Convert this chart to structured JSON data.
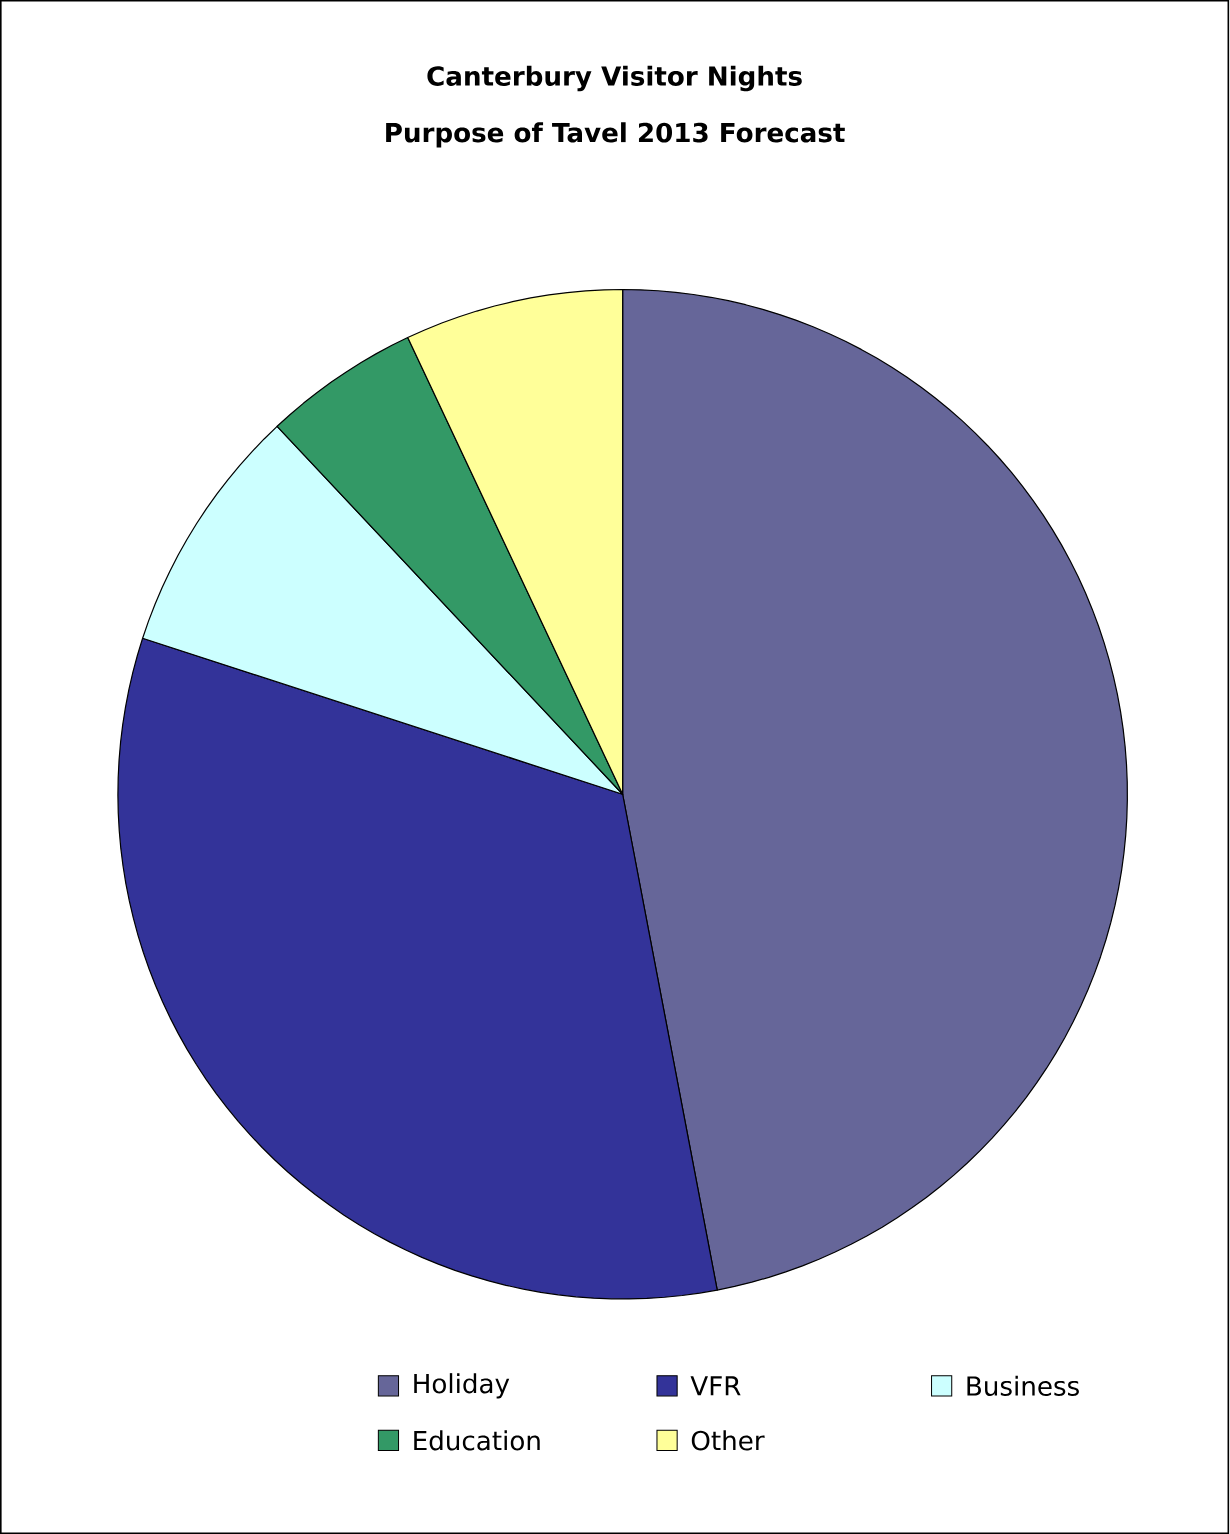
{
  "chart_data": {
    "type": "pie",
    "title": "Canterbury Visitor Nights",
    "subtitle": "Purpose of Tavel 2013 Forecast",
    "categories": [
      "Holiday",
      "VFR",
      "Business",
      "Education",
      "Other"
    ],
    "values": [
      47,
      33,
      8,
      5,
      7
    ],
    "colors": [
      "#666699",
      "#333399",
      "#ccffff",
      "#339966",
      "#ffff99"
    ],
    "legend": "bottom"
  }
}
